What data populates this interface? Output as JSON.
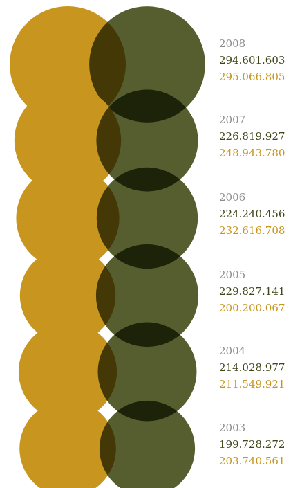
{
  "chart_data": {
    "type": "bubble",
    "categories": [
      "2008",
      "2007",
      "2006",
      "2005",
      "2004",
      "2003"
    ],
    "series": [
      {
        "color": "#c8961e",
        "values": [
          295066805,
          248943780,
          232616708,
          200200067,
          211549921,
          203740561
        ],
        "labels": [
          "295.066.805",
          "248.943.780",
          "232.616.708",
          "200.200.067",
          "211.549.921",
          "203.740.561"
        ]
      },
      {
        "color": "#4f5726",
        "values": [
          294601603,
          226819927,
          224240456,
          229827141,
          214028977,
          199728272
        ],
        "labels": [
          "294.601.603",
          "226.819.927",
          "224.240.456",
          "229.827.141",
          "214.028.977",
          "199.728.272"
        ]
      }
    ]
  }
}
